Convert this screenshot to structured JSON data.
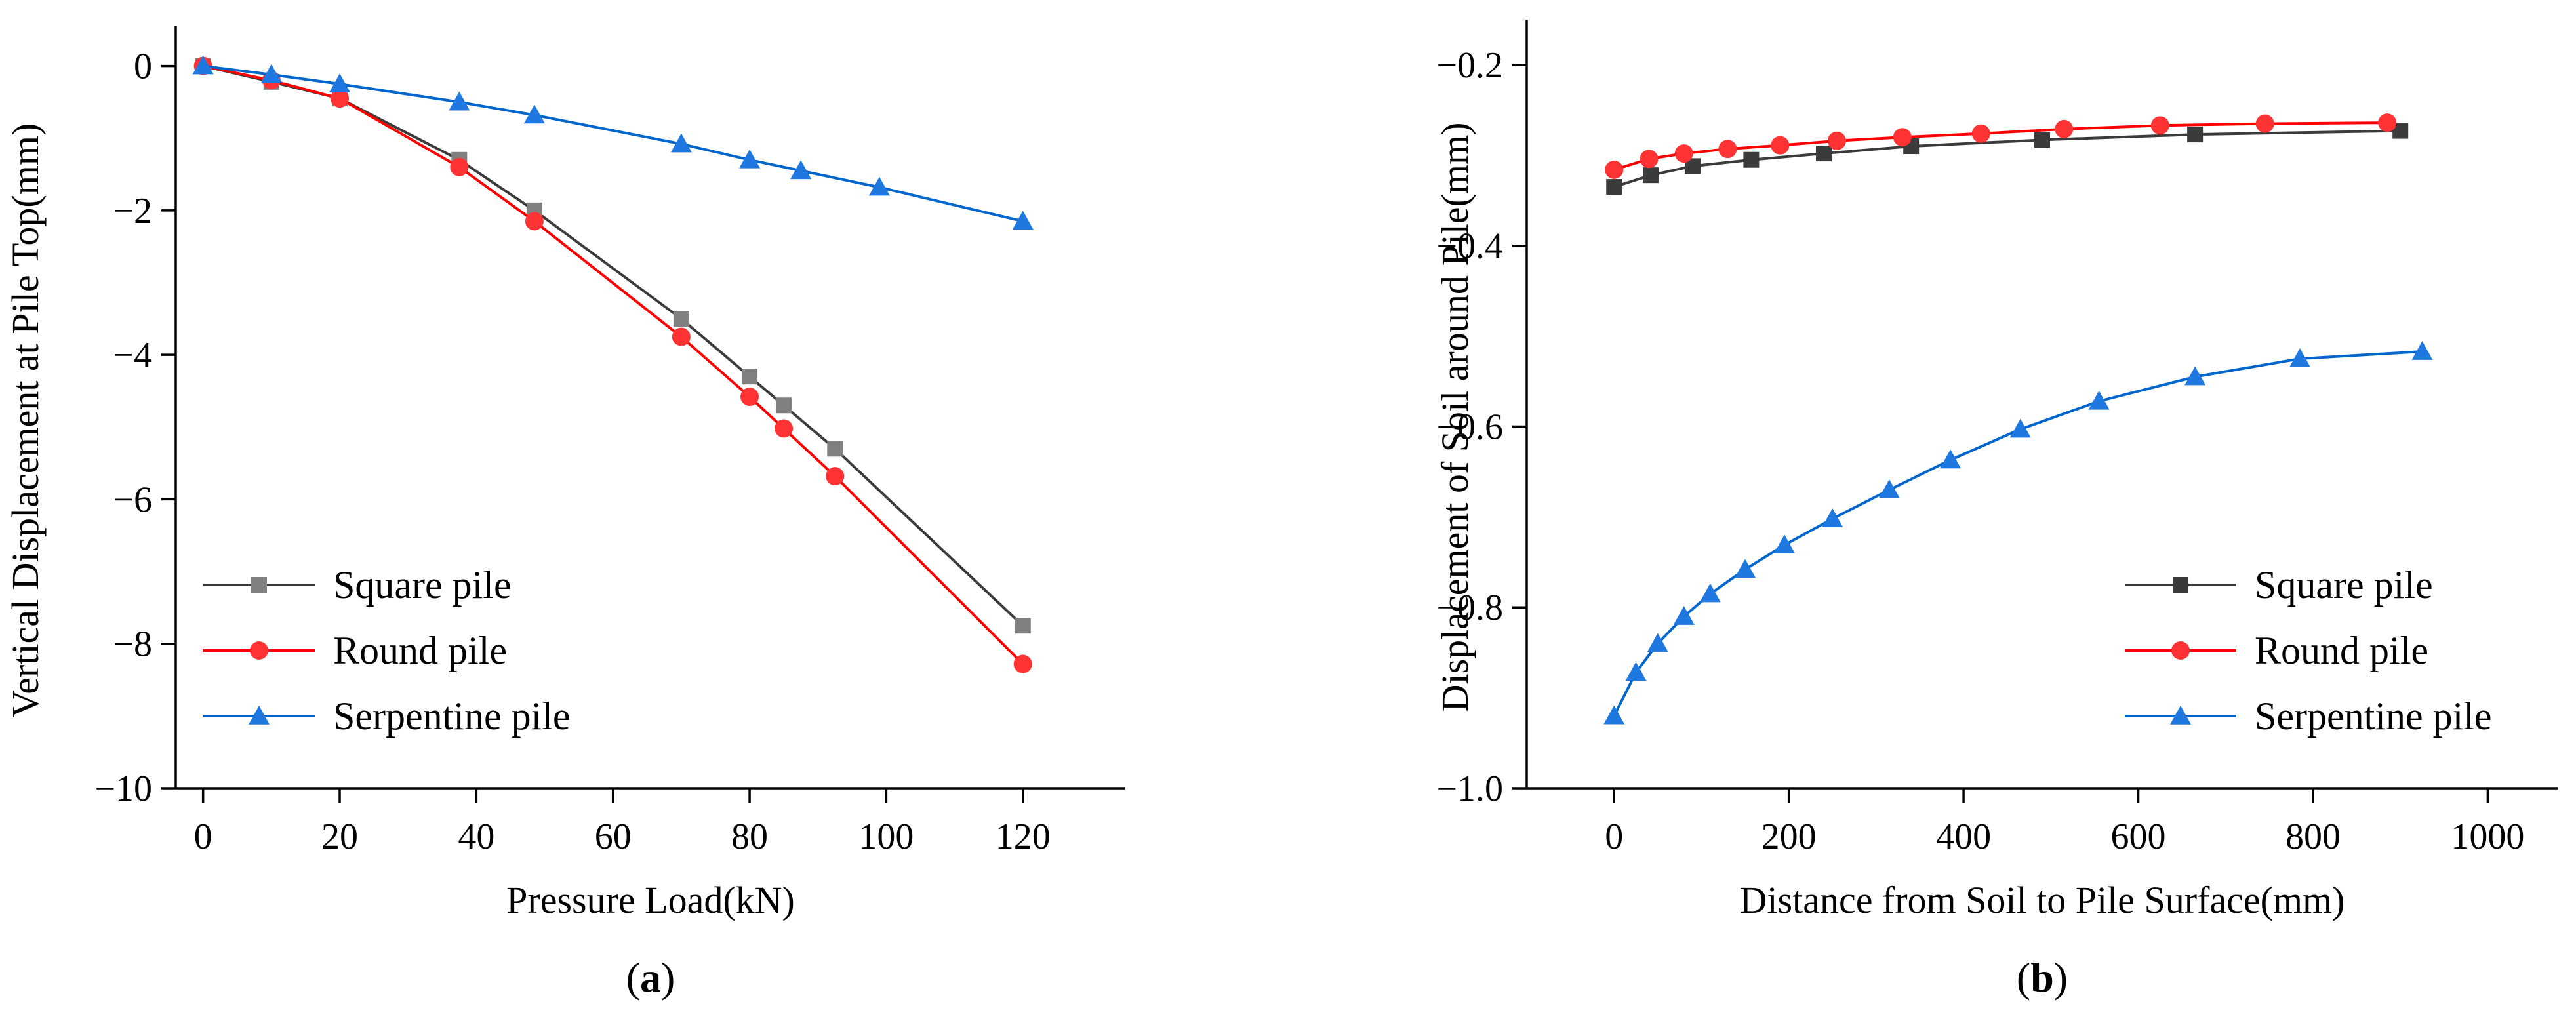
{
  "chart_data": [
    {
      "type": "line",
      "panel_label_prefix": "(",
      "panel_label": "a",
      "panel_label_suffix": ")",
      "xlabel": "Pressure Load(kN)",
      "ylabel": "Vertical Displacement at Pile Top(mm)",
      "xlim": [
        -4,
        135
      ],
      "ylim": [
        -10,
        0.55
      ],
      "xticks": [
        0,
        20,
        40,
        60,
        80,
        100,
        120
      ],
      "yticks": [
        0,
        -2,
        -4,
        -6,
        -8,
        -10
      ],
      "ytick_labels": [
        "0",
        "−2",
        "−4",
        "−6",
        "−8",
        "−10"
      ],
      "legend_position": "lower-left",
      "series": [
        {
          "name": "Square pile",
          "color": "#3b3b3b",
          "marker_color": "#808080",
          "marker": "square",
          "x": [
            0,
            10,
            20,
            37.5,
            48.5,
            70,
            80,
            85,
            92.5,
            120
          ],
          "y": [
            0,
            -0.22,
            -0.45,
            -1.3,
            -2.0,
            -3.5,
            -4.3,
            -4.7,
            -5.3,
            -7.75
          ]
        },
        {
          "name": "Round pile",
          "color": "#ff0000",
          "marker_color": "#ff3333",
          "marker": "circle",
          "x": [
            0,
            10,
            20,
            37.5,
            48.5,
            70,
            80,
            85,
            92.5,
            120
          ],
          "y": [
            0,
            -0.2,
            -0.45,
            -1.4,
            -2.15,
            -3.75,
            -4.58,
            -5.02,
            -5.68,
            -8.28
          ]
        },
        {
          "name": "Serpentine pile",
          "color": "#0066cc",
          "marker_color": "#1f77e0",
          "marker": "triangle",
          "x": [
            0,
            10,
            20,
            37.5,
            48.5,
            70,
            80,
            87.5,
            99,
            120
          ],
          "y": [
            0,
            -0.12,
            -0.25,
            -0.5,
            -0.68,
            -1.08,
            -1.3,
            -1.45,
            -1.68,
            -2.15
          ]
        }
      ]
    },
    {
      "type": "line",
      "panel_label_prefix": "(",
      "panel_label": "b",
      "panel_label_suffix": ")",
      "xlabel": "Distance from Soil to Pile Surface(mm)",
      "ylabel": "Displacement of Soil around Pile(mm)",
      "xlim": [
        -100,
        1080
      ],
      "ylim": [
        -1.0,
        -0.15
      ],
      "xticks": [
        0,
        200,
        400,
        600,
        800,
        1000
      ],
      "yticks": [
        -0.2,
        -0.4,
        -0.6,
        -0.8,
        -1.0
      ],
      "ytick_labels": [
        "−0.2",
        "−0.4",
        "−0.6",
        "−0.8",
        "−1.0"
      ],
      "legend_position": "lower-right",
      "series": [
        {
          "name": "Square pile",
          "color": "#3b3b3b",
          "marker_color": "#3b3b3b",
          "marker": "square",
          "x": [
            0,
            42,
            90,
            157,
            240,
            340,
            490,
            665,
            900
          ],
          "y": [
            -0.335,
            -0.322,
            -0.312,
            -0.305,
            -0.298,
            -0.29,
            -0.283,
            -0.277,
            -0.273
          ]
        },
        {
          "name": "Round pile",
          "color": "#ff0000",
          "marker_color": "#ff3333",
          "marker": "circle",
          "x": [
            0,
            40,
            80,
            130,
            190,
            255,
            330,
            420,
            515,
            625,
            745,
            885
          ],
          "y": [
            -0.316,
            -0.304,
            -0.298,
            -0.293,
            -0.289,
            -0.284,
            -0.28,
            -0.276,
            -0.271,
            -0.267,
            -0.265,
            -0.264
          ]
        },
        {
          "name": "Serpentine pile",
          "color": "#0066cc",
          "marker_color": "#1f77e0",
          "marker": "triangle",
          "x": [
            0,
            25,
            50,
            80,
            110,
            150,
            195,
            250,
            315,
            385,
            465,
            555,
            665,
            785,
            925
          ],
          "y": [
            -0.92,
            -0.872,
            -0.84,
            -0.81,
            -0.785,
            -0.758,
            -0.731,
            -0.702,
            -0.67,
            -0.637,
            -0.603,
            -0.572,
            -0.545,
            -0.525,
            -0.517
          ]
        }
      ]
    }
  ]
}
